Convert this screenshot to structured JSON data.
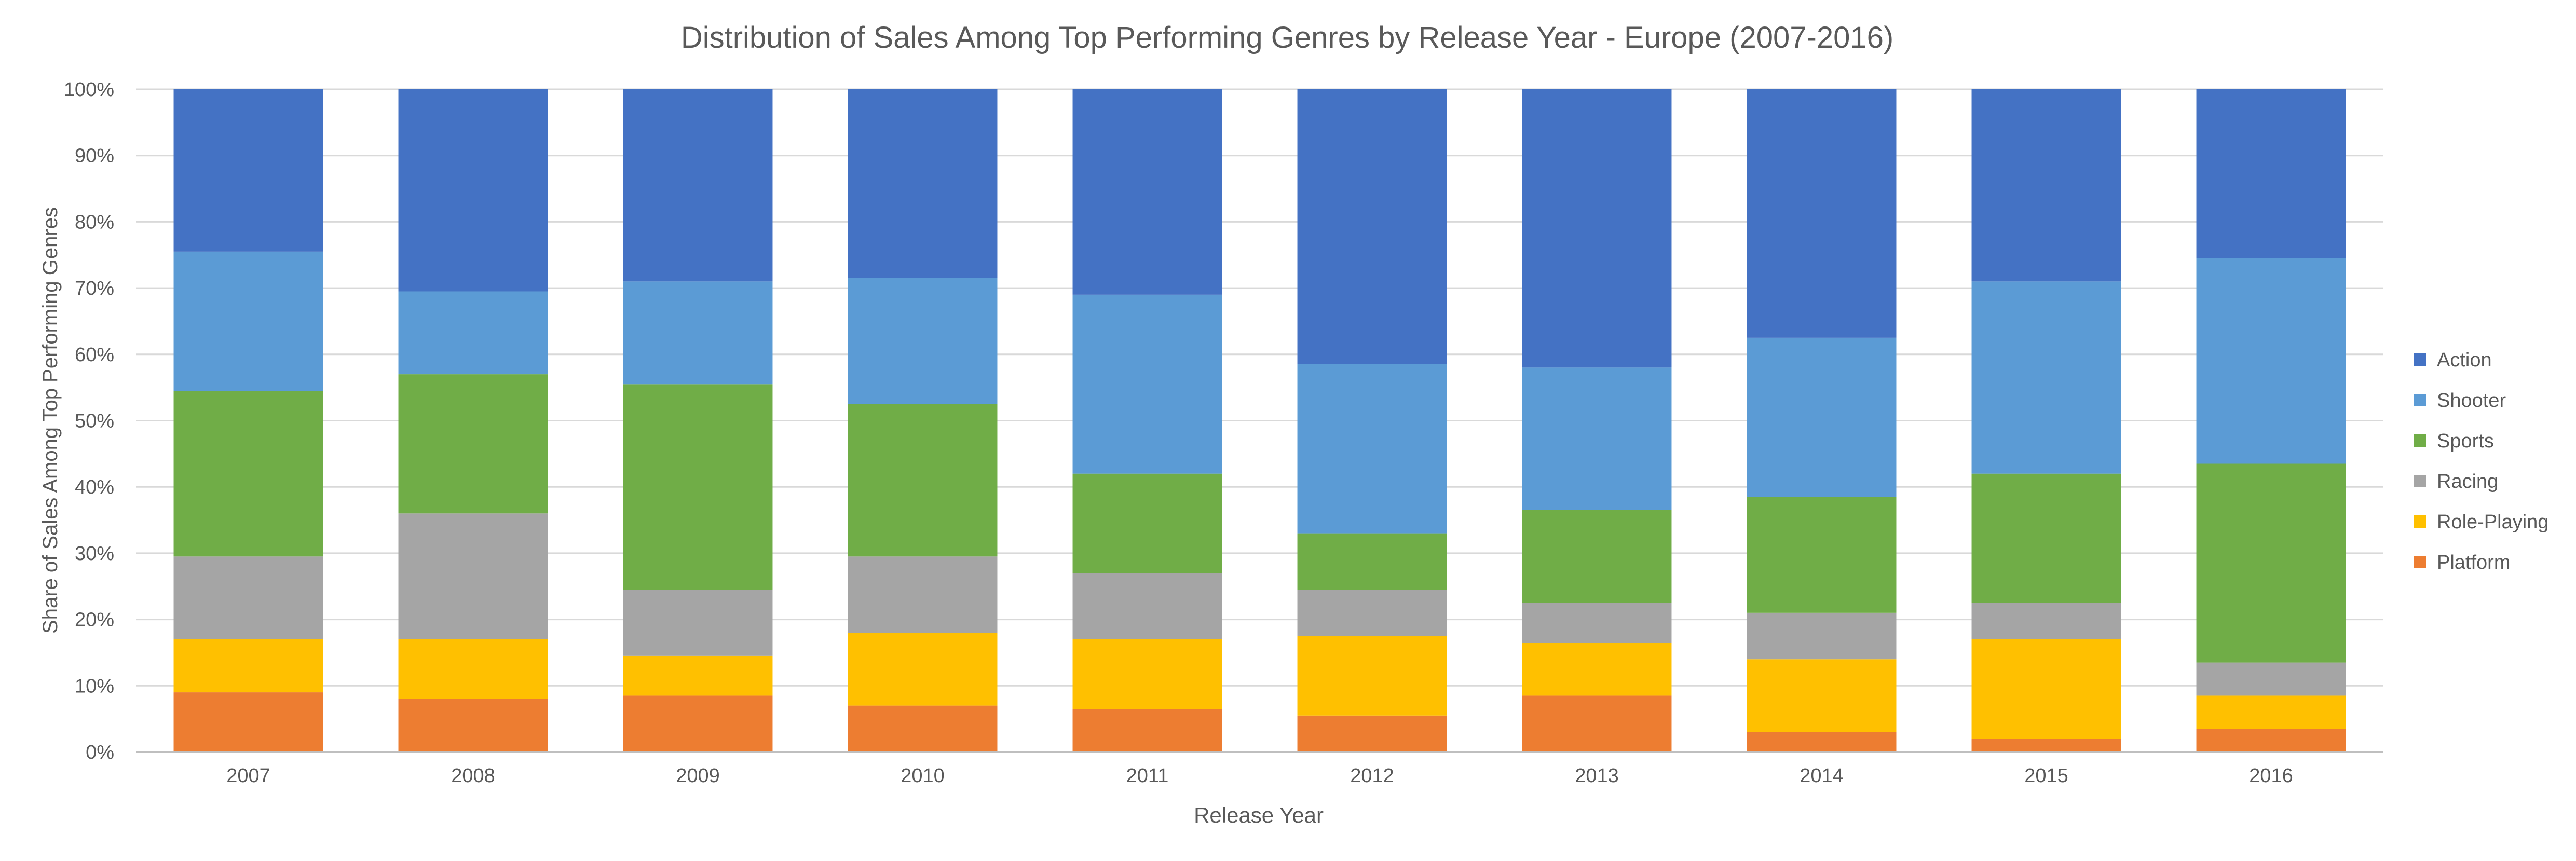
{
  "chart_data": {
    "type": "bar",
    "stacked": "percent",
    "title": "Distribution of Sales Among Top Performing Genres by Release Year - Europe (2007-2016)",
    "xlabel": "Release Year",
    "ylabel": "Share of Sales Among Top Performing Genres",
    "ylim": [
      0,
      100
    ],
    "yticks": [
      "0%",
      "10%",
      "20%",
      "30%",
      "40%",
      "50%",
      "60%",
      "70%",
      "80%",
      "90%",
      "100%"
    ],
    "grid": true,
    "legend_position": "right",
    "categories": [
      "2007",
      "2008",
      "2009",
      "2010",
      "2011",
      "2012",
      "2013",
      "2014",
      "2015",
      "2016"
    ],
    "series": [
      {
        "name": "Platform",
        "color": "#ED7D31",
        "values": [
          9,
          8,
          8.5,
          7,
          6.5,
          5.5,
          8.5,
          3,
          2,
          3.5
        ]
      },
      {
        "name": "Role-Playing",
        "color": "#FFC000",
        "values": [
          8,
          9,
          6,
          11,
          10.5,
          12,
          8,
          11,
          15,
          5
        ]
      },
      {
        "name": "Racing",
        "color": "#A5A5A5",
        "values": [
          12.5,
          19,
          10,
          11.5,
          10,
          7,
          6,
          7,
          5.5,
          5
        ]
      },
      {
        "name": "Sports",
        "color": "#70AD47",
        "values": [
          25,
          21,
          31,
          23,
          15,
          8.5,
          14,
          17.5,
          19.5,
          30
        ]
      },
      {
        "name": "Shooter",
        "color": "#5B9BD5",
        "values": [
          21,
          12.5,
          15.5,
          19,
          27,
          25.5,
          21.5,
          24,
          29,
          31
        ]
      },
      {
        "name": "Action",
        "color": "#4472C4",
        "values": [
          24.5,
          30.5,
          29,
          28.5,
          31,
          41.5,
          42,
          37.5,
          29,
          25.5
        ]
      }
    ],
    "legend_order": [
      "Action",
      "Shooter",
      "Sports",
      "Racing",
      "Role-Playing",
      "Platform"
    ]
  }
}
